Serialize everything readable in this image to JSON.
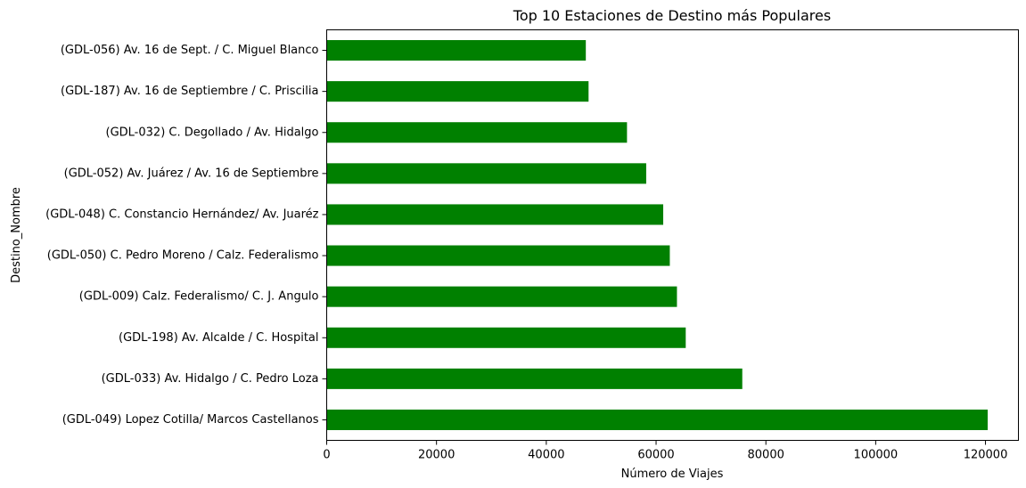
{
  "chart_data": {
    "type": "bar",
    "orientation": "horizontal",
    "title": "Top 10 Estaciones de Destino más Populares",
    "xlabel": "Número de Viajes",
    "ylabel": "Destino_Nombre",
    "xlim": [
      0,
      126000
    ],
    "xticks": [
      0,
      20000,
      40000,
      60000,
      80000,
      100000,
      120000
    ],
    "grid": false,
    "legend": "none",
    "bar_color": "#008000",
    "categories": [
      "(GDL-049) Lopez Cotilla/ Marcos Castellanos",
      "(GDL-033) Av. Hidalgo / C. Pedro Loza",
      "(GDL-198) Av. Alcalde / C. Hospital",
      "(GDL-009) Calz. Federalismo/ C. J. Angulo",
      "(GDL-050) C. Pedro Moreno / Calz. Federalismo",
      "(GDL-048) C. Constancio Hernández/ Av. Juaréz",
      "(GDL-052) Av. Juárez / Av. 16 de Septiembre",
      "(GDL-032) C. Degollado / Av. Hidalgo",
      "(GDL-187) Av. 16 de Septiembre / C. Priscilia",
      "(GDL-056) Av. 16 de Sept. / C. Miguel Blanco"
    ],
    "values": [
      120400,
      75700,
      65400,
      63800,
      62500,
      61300,
      58200,
      54700,
      47700,
      47200
    ]
  }
}
